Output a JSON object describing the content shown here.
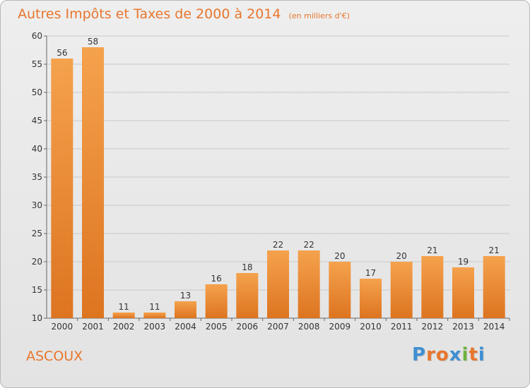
{
  "header": {
    "title": "Autres Impôts et Taxes de 2000 à 2014",
    "subtitle": "(en milliers d'€)"
  },
  "footer": {
    "commune": "ASCOUX",
    "logo_letters": [
      "P",
      "r",
      "o",
      "x",
      "i",
      "t",
      "i"
    ]
  },
  "colors": {
    "bar_light": "#f5a24d",
    "bar_dark": "#dd7420",
    "title": "#e8762d",
    "logo": [
      "#3f8fd2",
      "#e8762d",
      "#e8762d",
      "#3f8fd2",
      "#6cb33f",
      "#e8762d",
      "#3f8fd2"
    ]
  },
  "chart_data": {
    "type": "bar",
    "title": "Autres Impôts et Taxes de 2000 à 2014",
    "subtitle": "(en milliers d'€)",
    "categories": [
      "2000",
      "2001",
      "2002",
      "2003",
      "2004",
      "2005",
      "2006",
      "2007",
      "2008",
      "2009",
      "2010",
      "2011",
      "2012",
      "2013",
      "2014"
    ],
    "values": [
      56,
      58,
      11,
      11,
      13,
      16,
      18,
      22,
      22,
      20,
      17,
      20,
      21,
      19,
      21
    ],
    "ylim": [
      10,
      60
    ],
    "yticks": [
      10,
      15,
      20,
      25,
      30,
      35,
      40,
      45,
      50,
      55,
      60
    ],
    "xlabel": "",
    "ylabel": "",
    "grid": true,
    "data_labels": true
  }
}
